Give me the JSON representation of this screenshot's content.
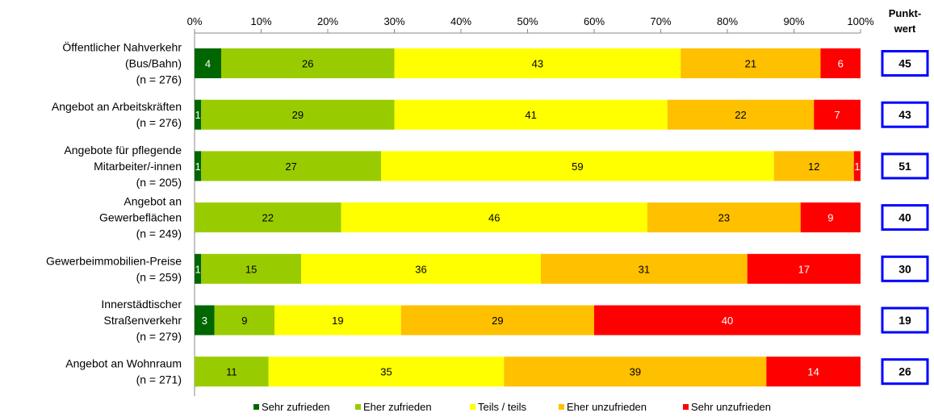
{
  "chart_data": {
    "type": "bar",
    "orientation": "horizontal",
    "stacked": "percent",
    "xlim": [
      0,
      100
    ],
    "x_ticks": [
      "0%",
      "10%",
      "20%",
      "30%",
      "40%",
      "50%",
      "60%",
      "70%",
      "80%",
      "90%",
      "100%"
    ],
    "categories": [
      [
        "Öffentlicher Nahverkehr",
        "(Bus/Bahn)",
        "(n = 276)"
      ],
      [
        "Angebot an Arbeitskräften",
        "(n = 276)"
      ],
      [
        "Angebote für pflegende",
        "Mitarbeiter/-innen",
        "(n = 205)"
      ],
      [
        "Angebot an",
        "Gewerbeflächen",
        "(n = 249)"
      ],
      [
        "Gewerbeimmobilien-Preise",
        "(n = 259)"
      ],
      [
        "Innerstädtischer",
        "Straßenverkehr",
        "(n = 279)"
      ],
      [
        "Angebot an Wohnraum",
        "(n = 271)"
      ]
    ],
    "series": [
      {
        "name": "Sehr zufrieden",
        "color": "#006600",
        "values": [
          4,
          1,
          1,
          0,
          1,
          3,
          0
        ],
        "labels": [
          "4",
          "1",
          "1",
          "",
          "1",
          "3",
          ""
        ]
      },
      {
        "name": "Eher zufrieden",
        "color": "#99cc00",
        "values": [
          26,
          29,
          27,
          22,
          15,
          9,
          11
        ],
        "labels": [
          "26",
          "29",
          "27",
          "22",
          "15",
          "9",
          "11"
        ]
      },
      {
        "name": "Teils / teils",
        "color": "#ffff00",
        "values": [
          43,
          41,
          59,
          46,
          36,
          19,
          35
        ],
        "labels": [
          "43",
          "41",
          "59",
          "46",
          "36",
          "19",
          "35"
        ]
      },
      {
        "name": "Eher unzufrieden",
        "color": "#ffc000",
        "values": [
          21,
          22,
          12,
          23,
          31,
          29,
          39
        ],
        "labels": [
          "21",
          "22",
          "12",
          "23",
          "31",
          "29",
          "39"
        ]
      },
      {
        "name": "Sehr unzufrieden",
        "color": "#ff0000",
        "values": [
          6,
          7,
          1,
          9,
          17,
          40,
          14
        ],
        "labels": [
          "6",
          "7",
          "1",
          "9",
          "17",
          "40",
          "14"
        ]
      }
    ],
    "punktwert": {
      "header": [
        "Punkt-",
        "wert"
      ],
      "values": [
        "45",
        "43",
        "51",
        "40",
        "30",
        "19",
        "26"
      ],
      "border_color": "#0000ff"
    },
    "legend_position": "bottom",
    "grid": false
  }
}
